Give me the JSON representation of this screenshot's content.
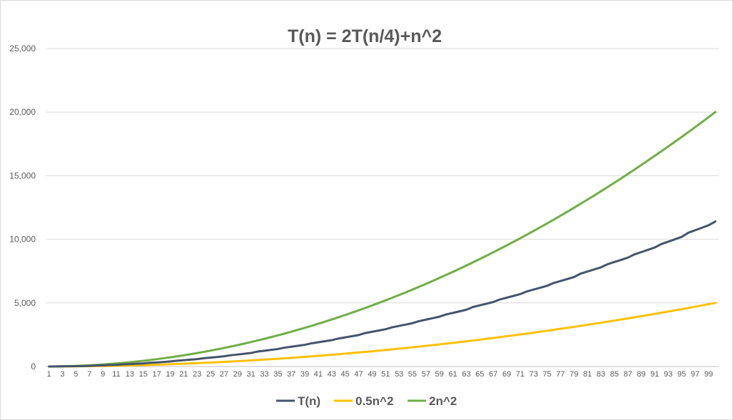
{
  "colors": {
    "series_tn": "#44546a",
    "series_half": "#ffc000",
    "series_two": "#70ad47",
    "grid": "#d9d9d9",
    "axis": "#bfbfbf",
    "text": "#595959"
  },
  "chart_data": {
    "type": "line",
    "title": "T(n) = 2T(n/4)+n^2",
    "xlabel": "",
    "ylabel": "",
    "x_start": 1,
    "x_end": 100,
    "x_tick_labels": [
      "1",
      "3",
      "5",
      "7",
      "9",
      "11",
      "13",
      "15",
      "17",
      "19",
      "21",
      "23",
      "25",
      "27",
      "29",
      "31",
      "33",
      "35",
      "37",
      "39",
      "41",
      "43",
      "45",
      "47",
      "49",
      "51",
      "53",
      "55",
      "57",
      "59",
      "61",
      "63",
      "65",
      "67",
      "69",
      "71",
      "73",
      "75",
      "77",
      "79",
      "81",
      "83",
      "85",
      "87",
      "89",
      "91",
      "93",
      "95",
      "97",
      "99"
    ],
    "ylim": [
      0,
      25000
    ],
    "y_ticks": [
      0,
      5000,
      10000,
      15000,
      20000,
      25000
    ],
    "y_tick_labels": [
      "0",
      "5,000",
      "10,000",
      "15,000",
      "20,000",
      "25,000"
    ],
    "grid": true,
    "legend_position": "bottom",
    "series": [
      {
        "name": "T(n)",
        "color_key": "series_tn",
        "formula": "T(n) = 2T(n/4) + n^2"
      },
      {
        "name": "0.5n^2",
        "color_key": "series_half",
        "formula": "0.5 * n^2"
      },
      {
        "name": "2n^2",
        "color_key": "series_two",
        "formula": "2 * n^2"
      }
    ],
    "sample_values": {
      "n": [
        1,
        10,
        20,
        30,
        40,
        50,
        60,
        70,
        80,
        90,
        100
      ],
      "T(n)": [
        1,
        120,
        480,
        930,
        1620,
        2570,
        3720,
        5010,
        6560,
        8220,
        10040
      ],
      "0.5n^2": [
        0.5,
        50,
        200,
        450,
        800,
        1250,
        1800,
        2450,
        3200,
        4050,
        5000
      ],
      "2n^2": [
        2,
        200,
        800,
        1800,
        3200,
        5000,
        7200,
        9800,
        12800,
        16200,
        20000
      ]
    }
  }
}
